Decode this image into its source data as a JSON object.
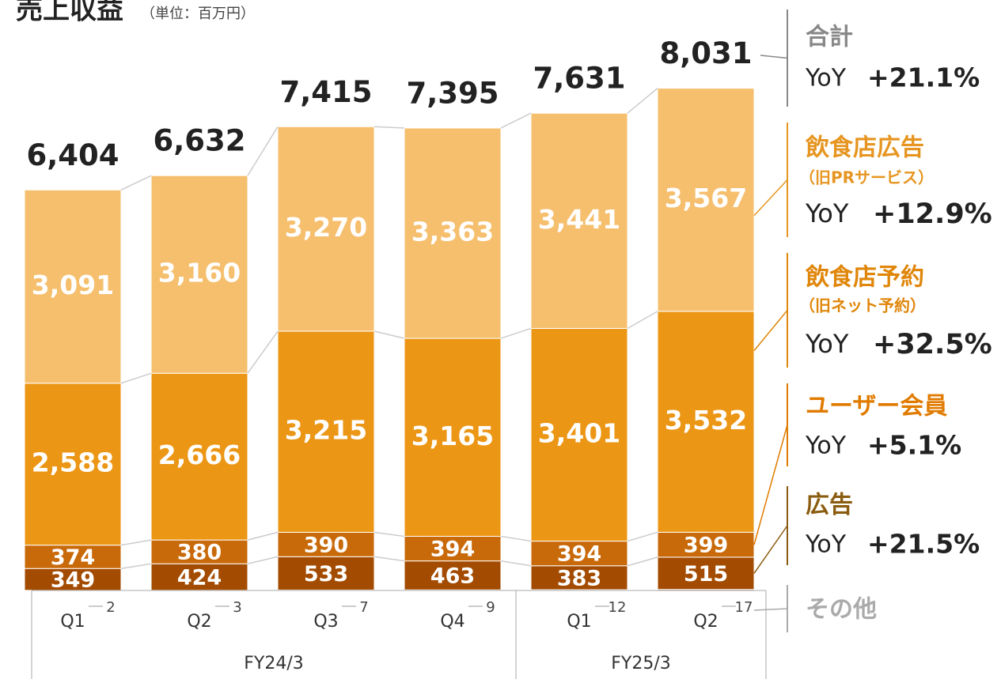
{
  "chart_data": {
    "type": "stacked_bar",
    "title": "売上収益",
    "subtitle": "（単位：百万円）",
    "categories": [
      "Q1",
      "Q2",
      "Q3",
      "Q4",
      "Q1",
      "Q2"
    ],
    "groups": [
      {
        "name": "FY24/3",
        "count": 4
      },
      {
        "name": "FY25/3",
        "count": 2
      }
    ],
    "ylim": [
      0,
      8000
    ],
    "yoy_label": "YoY",
    "total": {
      "name": "合計",
      "yoy": "+21.1%",
      "values": [
        6404,
        6632,
        7415,
        7395,
        7631,
        8031
      ],
      "value_labels": [
        "6,404",
        "6,632",
        "7,415",
        "7,395",
        "7,631",
        "8,031"
      ],
      "label_color": "#888888"
    },
    "series": [
      {
        "name": "その他",
        "color": "#a34b00",
        "label_color": "#aaaaaa",
        "values": [
          2,
          3,
          7,
          9,
          12,
          17
        ]
      },
      {
        "name": "広告",
        "color": "#a34b00",
        "label_color": "#8a5c10",
        "yoy": "+21.5%",
        "values": [
          349,
          424,
          533,
          463,
          383,
          515
        ]
      },
      {
        "name": "ユーザー会員",
        "color": "#c96a0a",
        "label_color": "#e07b00",
        "yoy": "+5.1%",
        "values": [
          374,
          380,
          390,
          394,
          394,
          399
        ]
      },
      {
        "name": "飲食店予約",
        "note": "（旧ネット予約）",
        "color": "#ec9615",
        "label_color": "#e0860a",
        "yoy": "+32.5%",
        "values": [
          2588,
          2666,
          3215,
          3165,
          3401,
          3532
        ],
        "value_labels": [
          "2,588",
          "2,666",
          "3,215",
          "3,165",
          "3,401",
          "3,532"
        ]
      },
      {
        "name": "飲食店広告",
        "note": "（旧PRサービス）",
        "color": "#f5bf6e",
        "label_color": "#e69520",
        "yoy": "+12.9%",
        "values": [
          3091,
          3160,
          3270,
          3363,
          3441,
          3567
        ],
        "value_labels": [
          "3,091",
          "3,160",
          "3,270",
          "3,363",
          "3,441",
          "3,567"
        ]
      }
    ]
  }
}
